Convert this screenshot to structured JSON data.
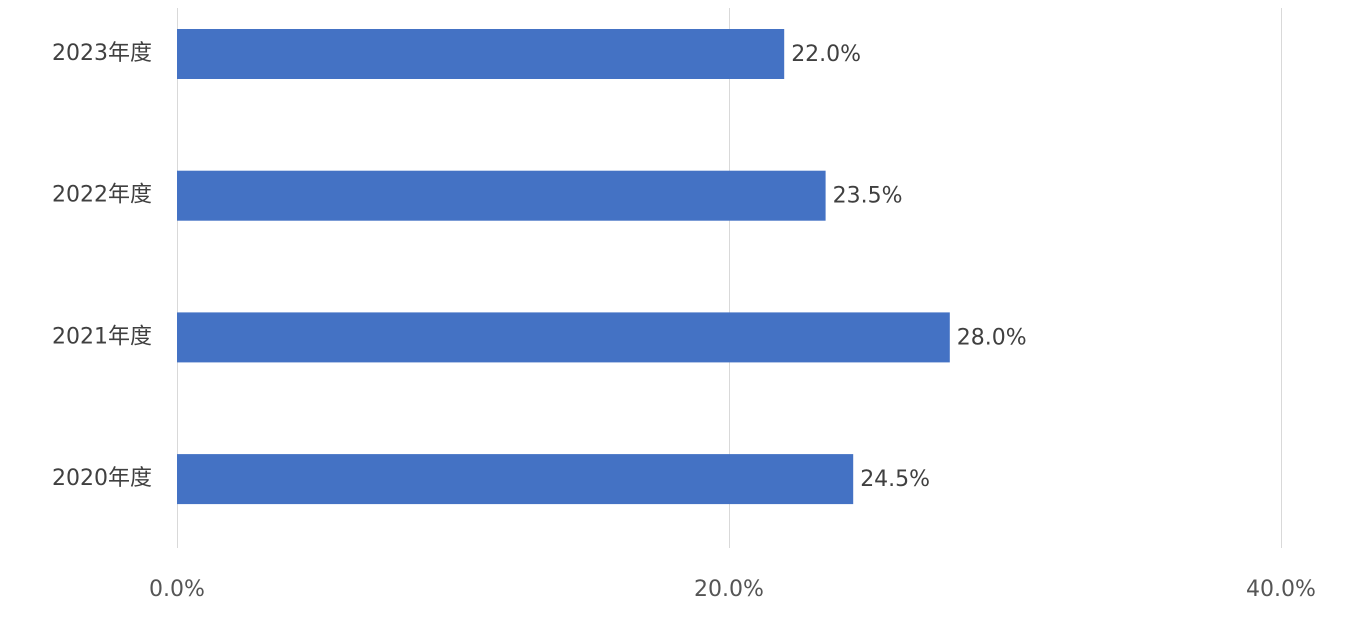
{
  "chart_data": {
    "type": "bar",
    "orientation": "horizontal",
    "title": "",
    "xlabel": "",
    "ylabel": "",
    "categories": [
      "2023年度",
      "2022年度",
      "2021年度",
      "2020年度"
    ],
    "values": [
      22.0,
      23.5,
      28.0,
      24.5
    ],
    "data_labels": [
      "22.0%",
      "23.5%",
      "28.0%",
      "24.5%"
    ],
    "xlim": [
      0,
      40
    ],
    "x_ticks": [
      0,
      20,
      40
    ],
    "x_tick_labels": [
      "0.0%",
      "20.0%",
      "40.0%"
    ],
    "grid": true,
    "legend": "none",
    "bar_color": "#4472C4"
  }
}
